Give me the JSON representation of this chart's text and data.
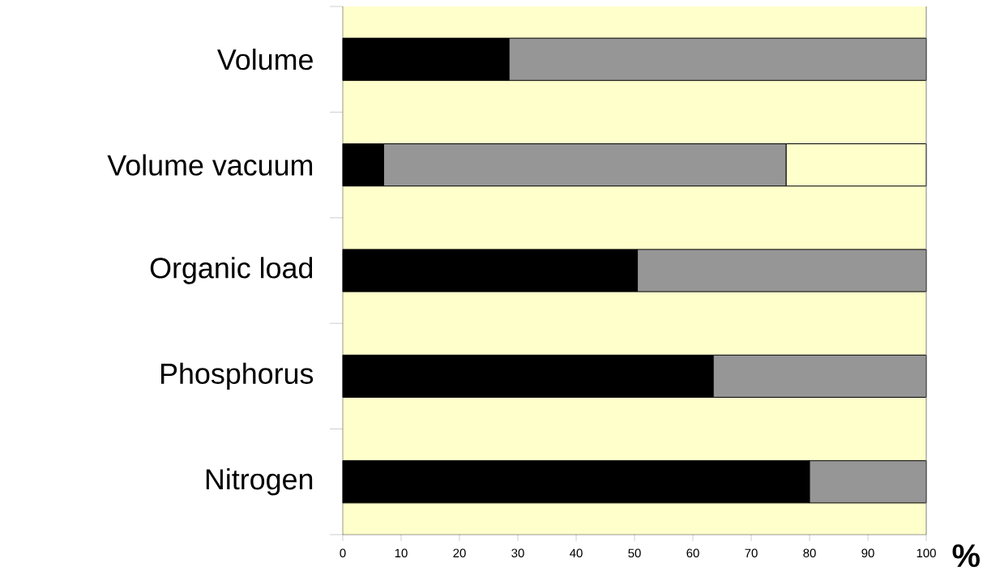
{
  "chart_data": {
    "type": "bar",
    "orientation": "horizontal",
    "stacked": true,
    "xlabel": "%",
    "categories": [
      "Volume",
      "Volume vacuum",
      "Organic load",
      "Phosphorus",
      "Nitrogen"
    ],
    "series": [
      {
        "color": "#000000",
        "values": [
          28.5,
          7,
          50.5,
          63.5,
          80
        ]
      },
      {
        "color": "#969696",
        "values": [
          71.5,
          69,
          49.5,
          36.5,
          20
        ]
      },
      {
        "color": "#ffffcc",
        "values": [
          null,
          24,
          null,
          null,
          null
        ]
      }
    ],
    "xlim": [
      0,
      100
    ],
    "xticks": [
      0,
      10,
      20,
      30,
      40,
      50,
      60,
      70,
      80,
      90,
      100
    ]
  }
}
